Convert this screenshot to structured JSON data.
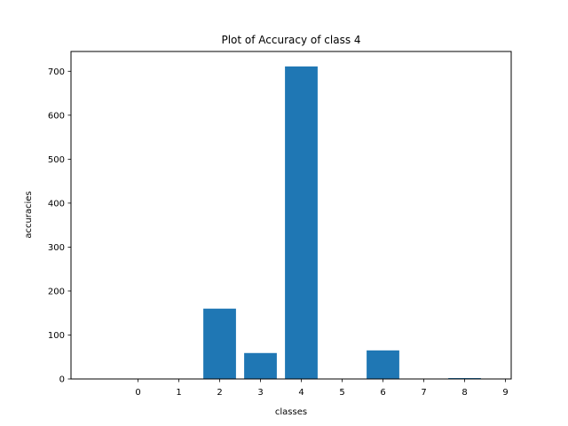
{
  "chart_data": {
    "type": "bar",
    "title": "Plot of Accuracy of class 4",
    "xlabel": "classes",
    "ylabel": "accuracies",
    "categories": [
      "0",
      "1",
      "2",
      "3",
      "4",
      "5",
      "6",
      "7",
      "8",
      "9"
    ],
    "values": [
      0,
      0,
      160,
      59,
      711,
      0,
      65,
      0,
      2,
      0
    ],
    "ylim": [
      0,
      745
    ],
    "yticks": [
      0,
      100,
      200,
      300,
      400,
      500,
      600,
      700
    ],
    "grid": false,
    "bar_color": "#1f77b4"
  }
}
